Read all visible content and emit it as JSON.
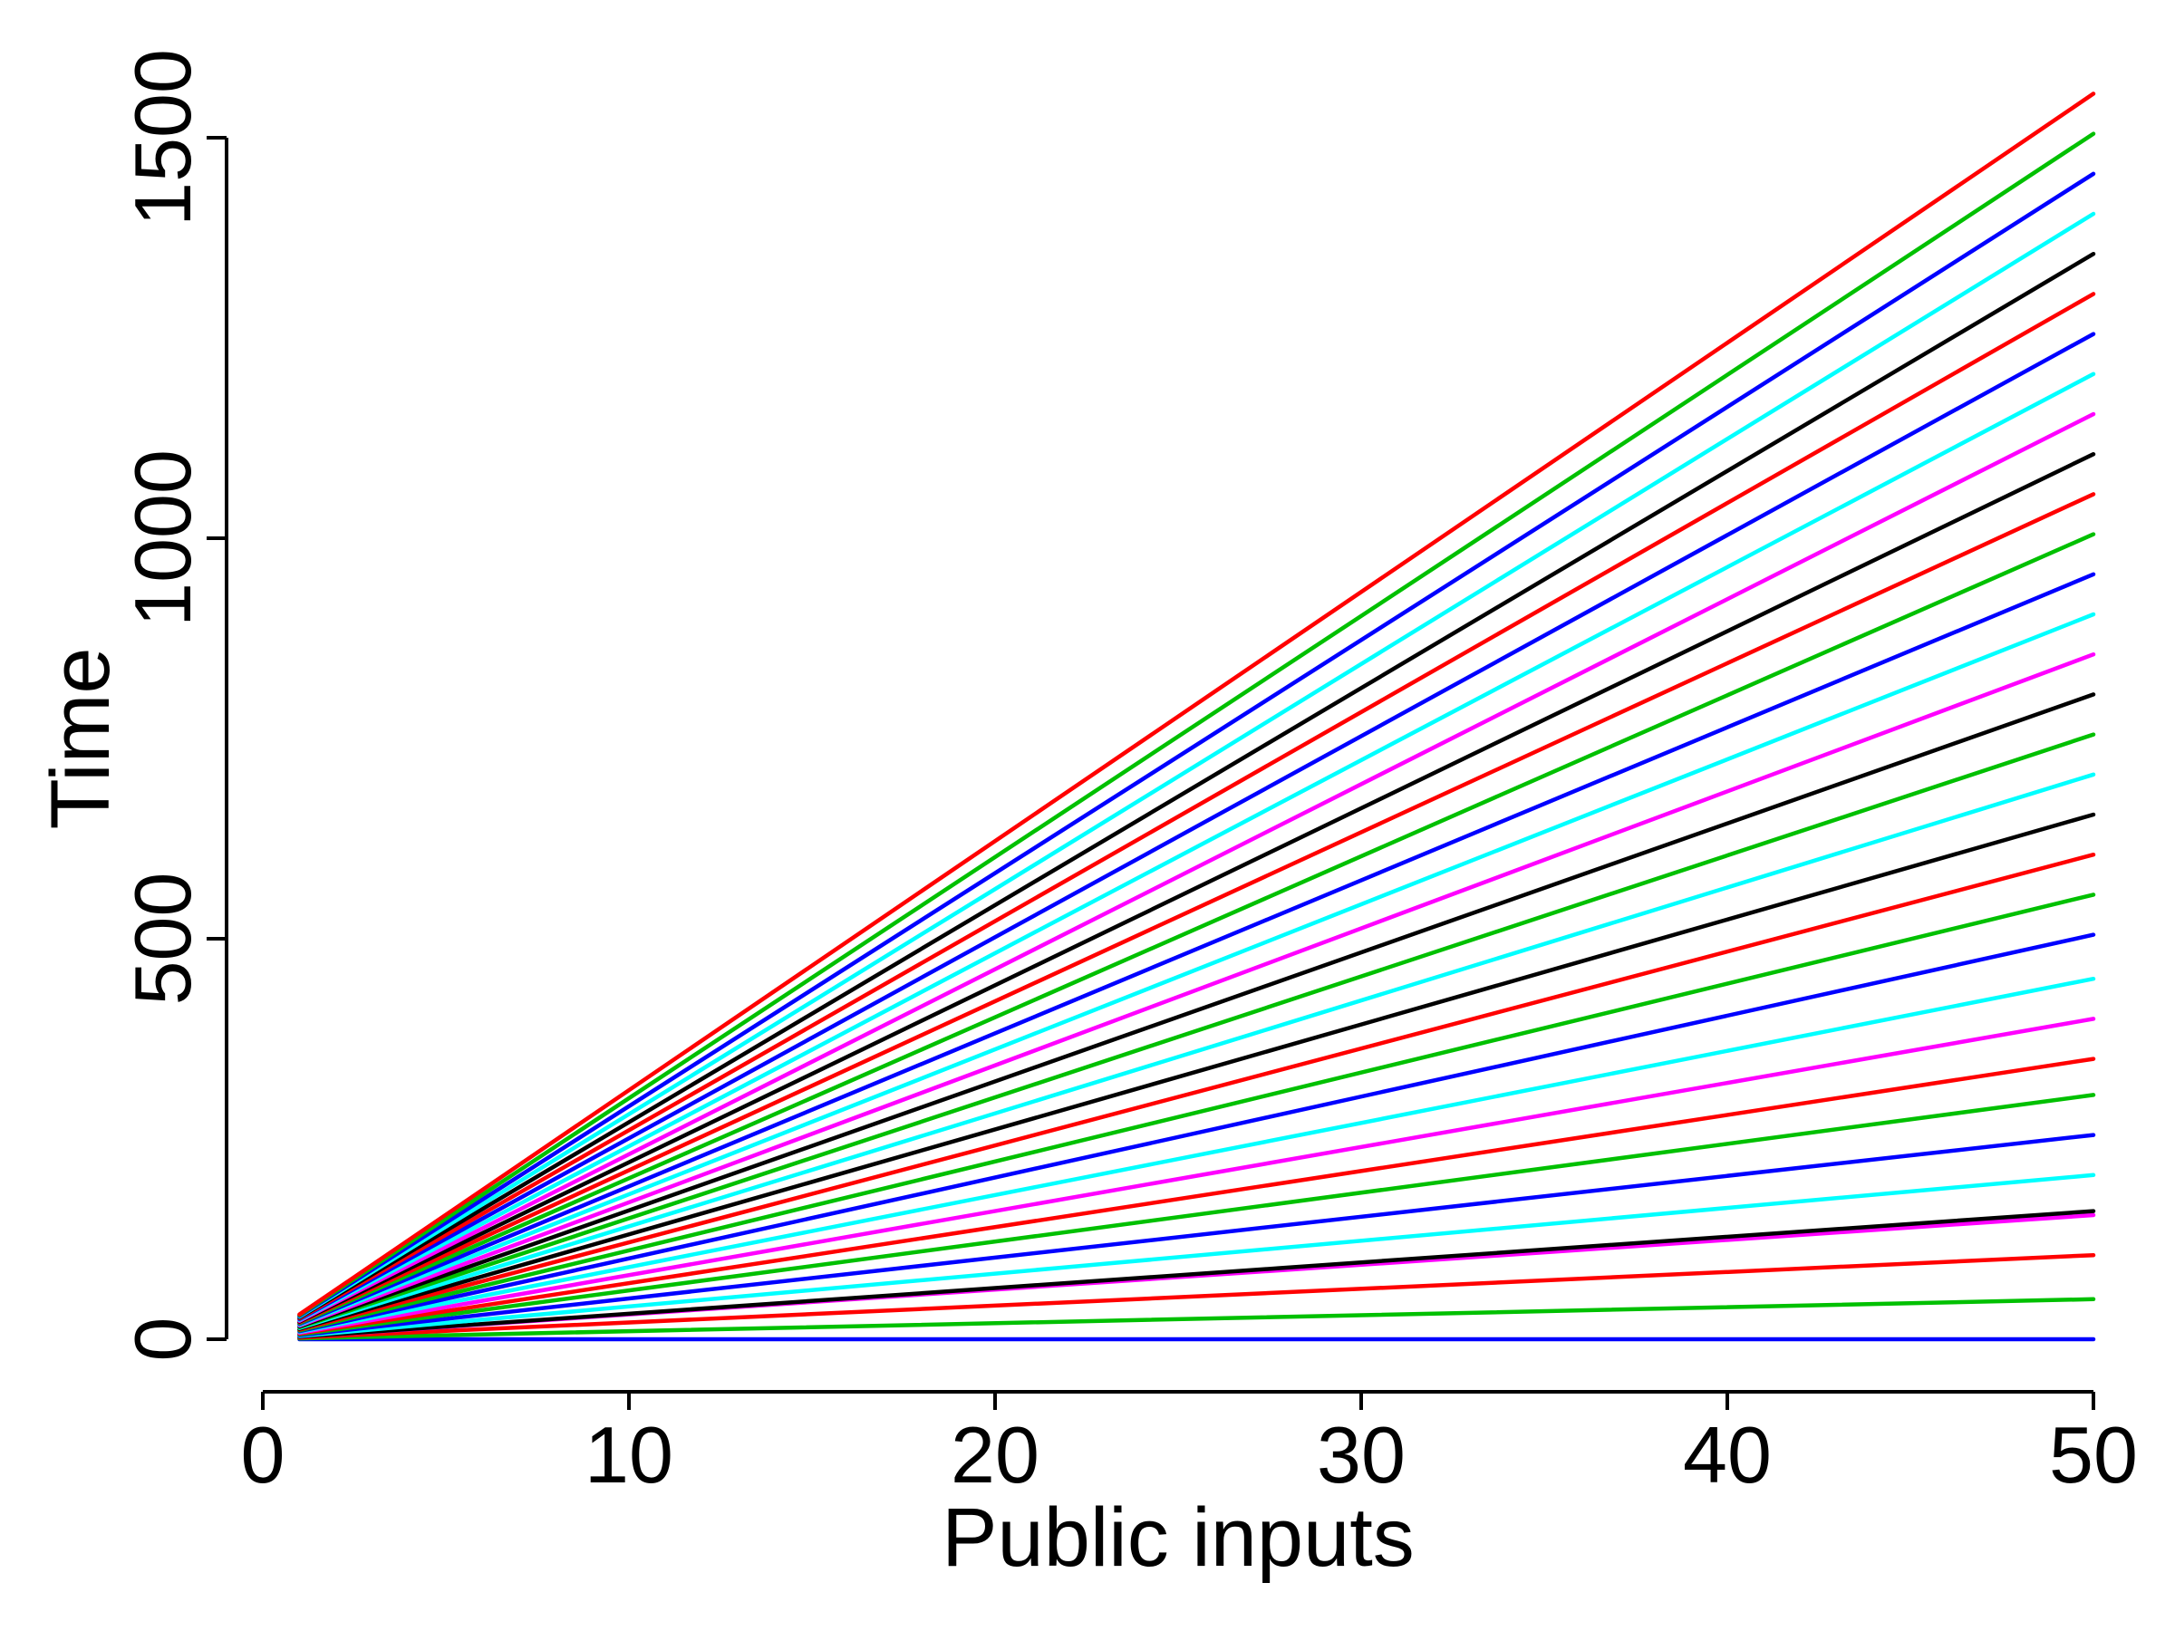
{
  "chart_data": {
    "type": "line",
    "xlabel": "Public inputs",
    "ylabel": "Time",
    "xlim": [
      0,
      50
    ],
    "ylim": [
      0,
      1500
    ],
    "x_ticks": [
      0,
      10,
      20,
      30,
      40,
      50
    ],
    "y_ticks": [
      0,
      500,
      1000,
      1500
    ],
    "grid": false,
    "legend": "none",
    "x": [
      1,
      50
    ],
    "series": [
      {
        "color": "#0000ff",
        "values": [
          0,
          0
        ]
      },
      {
        "color": "#00c000",
        "values": [
          1,
          50
        ]
      },
      {
        "color": "#ff0000",
        "values": [
          2,
          105
        ]
      },
      {
        "color": "#ff00ff",
        "values": [
          3,
          155
        ]
      },
      {
        "color": "#000000",
        "values": [
          3,
          160
        ]
      },
      {
        "color": "#00ffff",
        "values": [
          4,
          205
        ]
      },
      {
        "color": "#0000ff",
        "values": [
          5,
          255
        ]
      },
      {
        "color": "#00c000",
        "values": [
          6,
          305
        ]
      },
      {
        "color": "#ff0000",
        "values": [
          7,
          350
        ]
      },
      {
        "color": "#ff00ff",
        "values": [
          8,
          400
        ]
      },
      {
        "color": "#00ffff",
        "values": [
          9,
          450
        ]
      },
      {
        "color": "#0000ff",
        "values": [
          10,
          505
        ]
      },
      {
        "color": "#00c000",
        "values": [
          11,
          555
        ]
      },
      {
        "color": "#ff0000",
        "values": [
          12,
          605
        ]
      },
      {
        "color": "#000000",
        "values": [
          13,
          655
        ]
      },
      {
        "color": "#00ffff",
        "values": [
          14,
          705
        ]
      },
      {
        "color": "#00c000",
        "values": [
          15,
          755
        ]
      },
      {
        "color": "#000000",
        "values": [
          16,
          805
        ]
      },
      {
        "color": "#ff00ff",
        "values": [
          17,
          855
        ]
      },
      {
        "color": "#00ffff",
        "values": [
          18,
          905
        ]
      },
      {
        "color": "#0000ff",
        "values": [
          19,
          955
        ]
      },
      {
        "color": "#00c000",
        "values": [
          20,
          1005
        ]
      },
      {
        "color": "#ff0000",
        "values": [
          21,
          1055
        ]
      },
      {
        "color": "#000000",
        "values": [
          22,
          1105
        ]
      },
      {
        "color": "#ff00ff",
        "values": [
          23,
          1155
        ]
      },
      {
        "color": "#00ffff",
        "values": [
          24,
          1205
        ]
      },
      {
        "color": "#0000ff",
        "values": [
          25,
          1255
        ]
      },
      {
        "color": "#ff0000",
        "values": [
          26,
          1305
        ]
      },
      {
        "color": "#000000",
        "values": [
          27,
          1355
        ]
      },
      {
        "color": "#00ffff",
        "values": [
          28,
          1405
        ]
      },
      {
        "color": "#0000ff",
        "values": [
          29,
          1455
        ]
      },
      {
        "color": "#00c000",
        "values": [
          30,
          1505
        ]
      },
      {
        "color": "#ff0000",
        "values": [
          31,
          1555
        ]
      }
    ]
  }
}
